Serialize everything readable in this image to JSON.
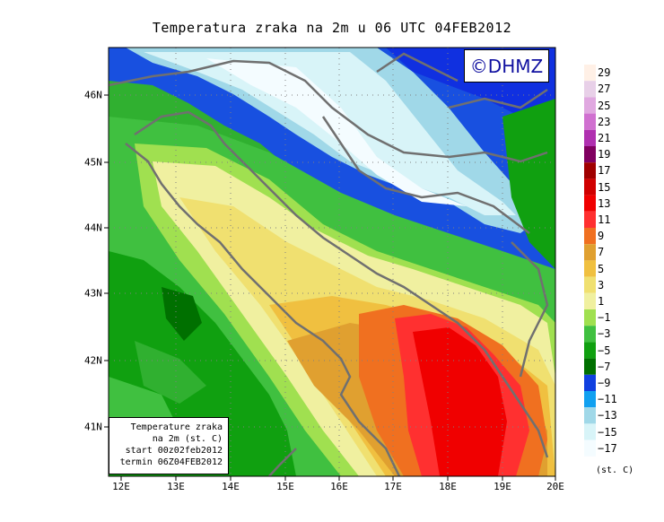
{
  "title": "Temperatura zraka na 2m u 06 UTC 04FEB2012",
  "credit": "©DHMZ",
  "info": {
    "line1": "Temperature zraka",
    "line2": "na 2m (st. C)",
    "line3": "start 00z02feb2012",
    "line4": "termin 06Z04FEB2012"
  },
  "axes": {
    "x_ticks": [
      "12E",
      "13E",
      "14E",
      "15E",
      "16E",
      "17E",
      "18E",
      "19E",
      "20E"
    ],
    "y_ticks": [
      "46N",
      "45N",
      "44N",
      "43N",
      "42N",
      "41N"
    ]
  },
  "legend": {
    "labels": [
      "29",
      "27",
      "25",
      "23",
      "21",
      "19",
      "17",
      "15",
      "13",
      "11",
      "9",
      "7",
      "5",
      "3",
      "1",
      "−1",
      "−3",
      "−5",
      "−7",
      "−9",
      "−11",
      "−13",
      "−15",
      "−17"
    ],
    "colors": [
      "#fff0e6",
      "#e8d0e8",
      "#e0a8e0",
      "#d070d0",
      "#b030b0",
      "#800060",
      "#a00000",
      "#d00000",
      "#f00000",
      "#ff3030",
      "#f07020",
      "#e0a030",
      "#f0c040",
      "#f0e070",
      "#f0f0a0",
      "#a0e050",
      "#40c040",
      "#10a010",
      "#007000",
      "#1040e0",
      "#10a0f0",
      "#a0d8e8",
      "#d8f4f8",
      "#f4fcff"
    ],
    "unit": "(st. C)"
  },
  "colors": {
    "sea": "#f0e070",
    "land": "#30b030",
    "frame": "#000000"
  }
}
